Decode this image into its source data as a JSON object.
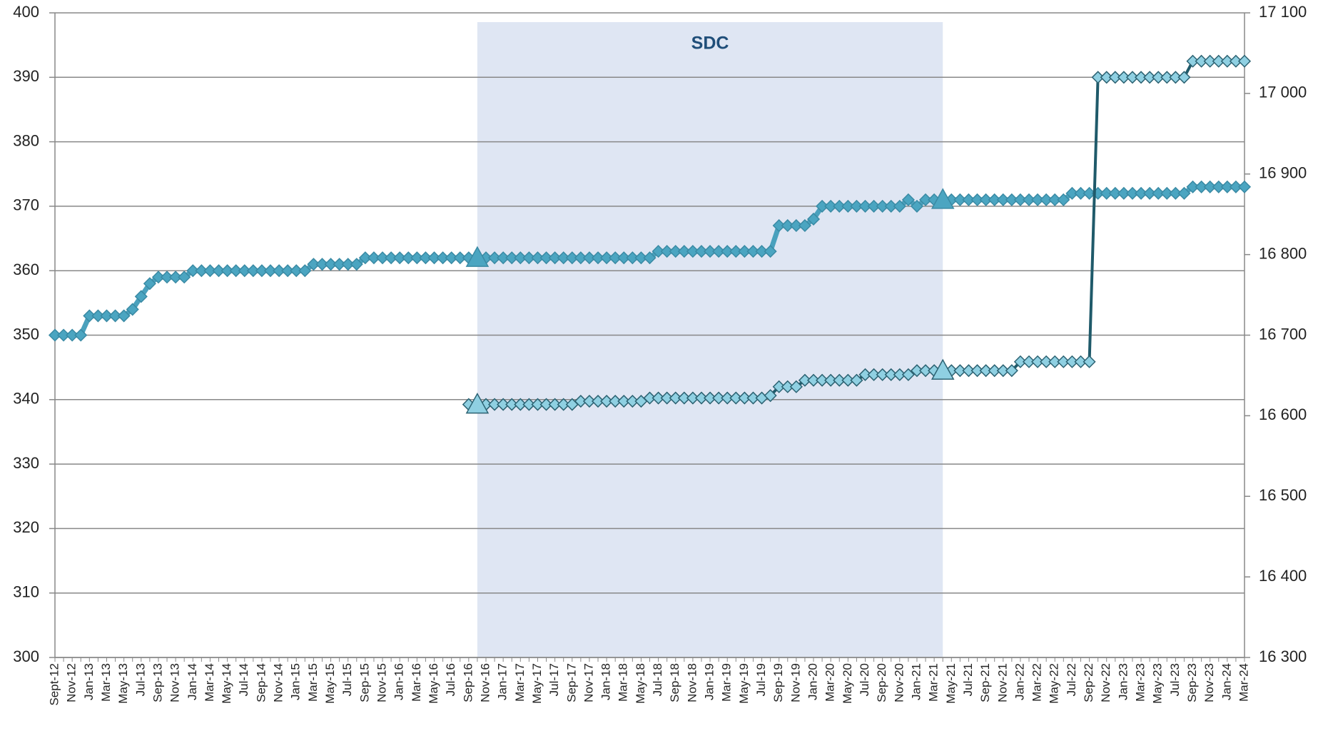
{
  "chart_data": {
    "type": "line",
    "band": {
      "label": "SDC",
      "start_index": 49,
      "end_index": 103,
      "color": "#dfe6f3"
    },
    "categories": [
      "Sept-12",
      null,
      "Nov-12",
      null,
      "Jan-13",
      null,
      "Mar-13",
      null,
      "May-13",
      null,
      "Jul-13",
      null,
      "Sep-13",
      null,
      "Nov-13",
      null,
      "Jan-14",
      null,
      "Mar-14",
      null,
      "May-14",
      null,
      "Jul-14",
      null,
      "Sep-14",
      null,
      "Nov-14",
      null,
      "Jan-15",
      null,
      "Mar-15",
      null,
      "May-15",
      null,
      "Jul-15",
      null,
      "Sep-15",
      null,
      "Nov-15",
      null,
      "Jan-16",
      null,
      "Mar-16",
      null,
      "May-16",
      null,
      "Jul-16",
      null,
      "Sep-16",
      null,
      "Nov-16",
      null,
      "Jan-17",
      null,
      "Mar-17",
      null,
      "May-17",
      null,
      "Jul-17",
      null,
      "Sep-17",
      null,
      "Nov-17",
      null,
      "Jan-18",
      null,
      "Mar-18",
      null,
      "May-18",
      null,
      "Jul-18",
      null,
      "Sep-18",
      null,
      "Nov-18",
      null,
      "Jan-19",
      null,
      "Mar-19",
      null,
      "May-19",
      null,
      "Jul-19",
      null,
      "Sep-19",
      null,
      "Nov-19",
      null,
      "Jan-20",
      null,
      "Mar-20",
      null,
      "May-20",
      null,
      "Jul-20",
      null,
      "Sep-20",
      null,
      "Nov-20",
      null,
      "Jan-21",
      null,
      "Mar-21",
      null,
      "May-21",
      null,
      "Jul-21",
      null,
      "Sep-21",
      null,
      "Nov-21",
      null,
      "Jan-22",
      null,
      "Mar-22",
      null,
      "May-22",
      null,
      "Jul-22",
      null,
      "Sep-22",
      null,
      "Nov-22",
      null,
      "Jan-23",
      null,
      "Mar-23",
      null,
      "May-23",
      null,
      "Jul-23",
      null,
      "Sep-23",
      null,
      "Nov-23",
      null,
      "Jan-24",
      null,
      "Mar-24"
    ],
    "series": [
      {
        "color": "#4aa1bd",
        "marker_fill": "#4ba5c1",
        "marker_stroke": "#3a8aa4",
        "line_width": 7,
        "values": [
          350,
          350,
          350,
          350,
          353,
          353,
          353,
          353,
          353,
          354,
          356,
          358,
          359,
          359,
          359,
          359,
          360,
          360,
          360,
          360,
          360,
          360,
          360,
          360,
          360,
          360,
          360,
          360,
          360,
          360,
          361,
          361,
          361,
          361,
          361,
          361,
          362,
          362,
          362,
          362,
          362,
          362,
          362,
          362,
          362,
          362,
          362,
          362,
          362,
          362,
          362,
          362,
          362,
          362,
          362,
          362,
          362,
          362,
          362,
          362,
          362,
          362,
          362,
          362,
          362,
          362,
          362,
          362,
          362,
          362,
          363,
          363,
          363,
          363,
          363,
          363,
          363,
          363,
          363,
          363,
          363,
          363,
          363,
          363,
          367,
          367,
          367,
          367,
          368,
          370,
          370,
          370,
          370,
          370,
          370,
          370,
          370,
          370,
          370,
          371,
          370,
          371,
          371,
          371,
          371,
          371,
          371,
          371,
          371,
          371,
          371,
          371,
          371,
          371,
          371,
          371,
          371,
          371,
          372,
          372,
          372,
          372,
          372,
          372,
          372,
          372,
          372,
          372,
          372,
          372,
          372,
          372,
          373,
          373,
          373,
          373,
          373,
          373,
          373
        ]
      },
      {
        "color": "#1f5a6a",
        "marker_fill": "#8fd0e2",
        "marker_stroke": "#2c6272",
        "line_width": 4,
        "axis": "y2",
        "values": [
          null,
          null,
          null,
          null,
          null,
          null,
          null,
          null,
          null,
          null,
          null,
          null,
          null,
          null,
          null,
          null,
          null,
          null,
          null,
          null,
          null,
          null,
          null,
          null,
          null,
          null,
          null,
          null,
          null,
          null,
          null,
          null,
          null,
          null,
          null,
          null,
          null,
          null,
          null,
          null,
          null,
          null,
          null,
          null,
          null,
          null,
          null,
          null,
          16614,
          16614,
          16614,
          16614,
          16614,
          16614,
          16614,
          16614,
          16614,
          16614,
          16614,
          16614,
          16614,
          16618,
          16618,
          16618,
          16618,
          16618,
          16618,
          16618,
          16618,
          16622,
          16622,
          16622,
          16622,
          16622,
          16622,
          16622,
          16622,
          16622,
          16622,
          16622,
          16622,
          16622,
          16622,
          16625,
          16636,
          16636,
          16636,
          16644,
          16644,
          16644,
          16644,
          16644,
          16644,
          16644,
          16651,
          16651,
          16651,
          16651,
          16651,
          16651,
          16656,
          16656,
          16656,
          16656,
          16656,
          16656,
          16656,
          16656,
          16656,
          16656,
          16656,
          16656,
          16667,
          16667,
          16667,
          16667,
          16667,
          16667,
          16667,
          16667,
          16667,
          17020,
          17020,
          17020,
          17020,
          17020,
          17020,
          17020,
          17020,
          17020,
          17020,
          17020,
          17040,
          17040,
          17040,
          17040,
          17040,
          17040,
          17040
        ]
      }
    ],
    "ylim": [
      300,
      400
    ],
    "yticks": [
      300,
      310,
      320,
      330,
      340,
      350,
      360,
      370,
      380,
      390,
      400
    ],
    "y2lim": [
      16300,
      17100
    ],
    "y2ticks": [
      {
        "value": 16300,
        "label": "16 300"
      },
      {
        "value": 16400,
        "label": "16 400"
      },
      {
        "value": 16500,
        "label": "16 500"
      },
      {
        "value": 16600,
        "label": "16 600"
      },
      {
        "value": 16700,
        "label": "16 700"
      },
      {
        "value": 16800,
        "label": "16 800"
      },
      {
        "value": 16900,
        "label": "16 900"
      },
      {
        "value": 17000,
        "label": "17 000"
      },
      {
        "value": 17100,
        "label": "17 100"
      }
    ],
    "grid": true
  }
}
